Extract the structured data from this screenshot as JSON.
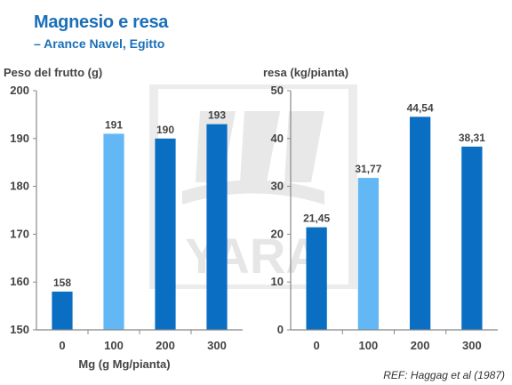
{
  "slide": {
    "title": "Magnesio e resa",
    "subtitle": "– Arance Navel, Egitto",
    "reference": "REF: Haggag et al (1987)",
    "watermark_text": "YARA"
  },
  "colors": {
    "title": "#1a6fb8",
    "bar_dark": "#0a6fc2",
    "bar_light": "#63b7f4",
    "axis": "#888888",
    "watermark": "#e8e8e8"
  },
  "chart_data": [
    {
      "type": "bar",
      "ylabel": "Peso del frutto (g)",
      "xlabel": "Mg (g Mg/pianta)",
      "categories": [
        "0",
        "100",
        "200",
        "300"
      ],
      "values": [
        158,
        191,
        190,
        193
      ],
      "value_labels": [
        "158",
        "191",
        "190",
        "193"
      ],
      "bar_colors": [
        "bar_dark",
        "bar_light",
        "bar_dark",
        "bar_dark"
      ],
      "ylim": [
        150,
        200
      ],
      "yticks": [
        150,
        160,
        170,
        180,
        190,
        200
      ],
      "grid": false
    },
    {
      "type": "bar",
      "ylabel": "resa (kg/pianta)",
      "xlabel": "",
      "categories": [
        "0",
        "100",
        "200",
        "300"
      ],
      "values": [
        21.45,
        31.77,
        44.54,
        38.31
      ],
      "value_labels": [
        "21,45",
        "31,77",
        "44,54",
        "38,31"
      ],
      "bar_colors": [
        "bar_dark",
        "bar_light",
        "bar_dark",
        "bar_dark"
      ],
      "ylim": [
        0,
        50
      ],
      "yticks": [
        0,
        10,
        20,
        30,
        40,
        50
      ],
      "grid": false
    }
  ]
}
